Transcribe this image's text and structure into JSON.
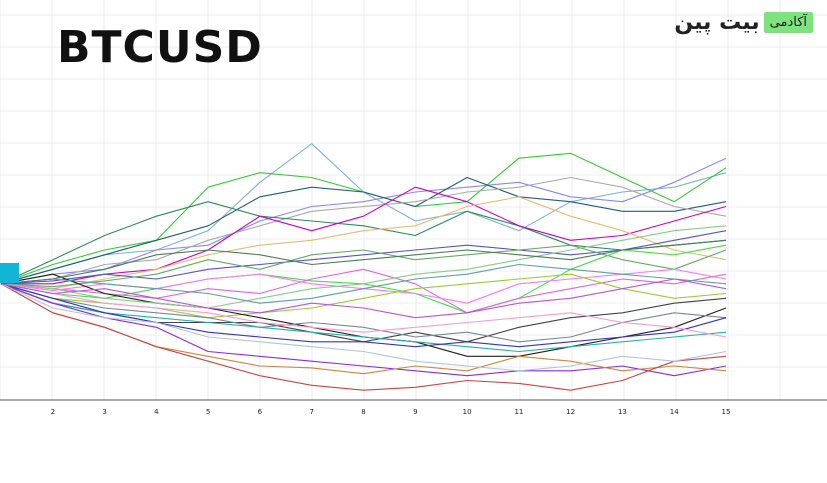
{
  "title": "BTCUSD",
  "brand": {
    "name": "بیت پین",
    "badge": "آکادمی"
  },
  "colors": {
    "background": "#ffffff",
    "grid": "#ececec",
    "axis": "#555555",
    "start_marker": "#13b5d6"
  },
  "chart_data": {
    "type": "line",
    "title": "BTCUSD",
    "xlabel": "",
    "ylabel": "",
    "grid": true,
    "x": [
      1,
      2,
      3,
      4,
      5,
      6,
      7,
      8,
      9,
      10,
      11,
      12,
      13,
      14,
      15
    ],
    "x_tick_labels": [
      "2",
      "3",
      "4",
      "5",
      "6",
      "7",
      "8",
      "9",
      "10",
      "11",
      "12",
      "13",
      "14",
      "15"
    ],
    "ylim": [
      0,
      300
    ],
    "series": [
      {
        "color": "#7fb3d5",
        "values": [
          115,
          130,
          145,
          150,
          170,
          220,
          260,
          210,
          180,
          190,
          170,
          200,
          210,
          215,
          230
        ]
      },
      {
        "color": "#33cc33",
        "values": [
          115,
          135,
          150,
          160,
          215,
          230,
          225,
          210,
          195,
          200,
          245,
          250,
          225,
          200,
          235
        ]
      },
      {
        "color": "#8888ff",
        "values": [
          115,
          125,
          130,
          150,
          155,
          180,
          195,
          200,
          210,
          215,
          220,
          205,
          200,
          220,
          245
        ]
      },
      {
        "color": "#1f5f7a",
        "values": [
          115,
          130,
          145,
          160,
          175,
          205,
          215,
          210,
          195,
          225,
          205,
          200,
          190,
          190,
          200
        ]
      },
      {
        "color": "#aaaaaa",
        "values": [
          115,
          120,
          135,
          140,
          160,
          175,
          190,
          195,
          200,
          210,
          215,
          225,
          215,
          195,
          185
        ]
      },
      {
        "color": "#2e8b57",
        "values": [
          115,
          140,
          165,
          185,
          200,
          185,
          180,
          175,
          165,
          190,
          175,
          155,
          150,
          155,
          160
        ]
      },
      {
        "color": "#cc00cc",
        "values": [
          115,
          115,
          125,
          130,
          150,
          185,
          170,
          185,
          215,
          200,
          175,
          160,
          165,
          180,
          195
        ]
      },
      {
        "color": "#e0c070",
        "values": [
          115,
          110,
          120,
          130,
          145,
          155,
          160,
          170,
          175,
          195,
          205,
          185,
          170,
          150,
          140
        ]
      },
      {
        "color": "#5555cc",
        "values": [
          115,
          118,
          125,
          120,
          130,
          135,
          140,
          145,
          150,
          155,
          150,
          145,
          150,
          160,
          170
        ]
      },
      {
        "color": "#66aa66",
        "values": [
          115,
          112,
          118,
          125,
          140,
          130,
          145,
          150,
          140,
          145,
          150,
          155,
          140,
          130,
          150
        ]
      },
      {
        "color": "#44dd44",
        "values": [
          115,
          105,
          100,
          110,
          120,
          125,
          118,
          115,
          105,
          85,
          100,
          130,
          150,
          145,
          155
        ]
      },
      {
        "color": "#dd66dd",
        "values": [
          115,
          110,
          105,
          100,
          110,
          105,
          120,
          130,
          115,
          85,
          100,
          110,
          120,
          115,
          125
        ]
      },
      {
        "color": "#ff77ff",
        "values": [
          115,
          108,
          115,
          110,
          120,
          125,
          115,
          110,
          105,
          95,
          115,
          120,
          125,
          130,
          120
        ]
      },
      {
        "color": "#99cc33",
        "values": [
          115,
          100,
          95,
          90,
          80,
          85,
          90,
          100,
          110,
          115,
          120,
          125,
          110,
          100,
          105
        ]
      },
      {
        "color": "#222222",
        "values": [
          115,
          125,
          105,
          95,
          90,
          80,
          70,
          60,
          55,
          40,
          40,
          50,
          60,
          70,
          90
        ]
      },
      {
        "color": "#444444",
        "values": [
          115,
          95,
          85,
          75,
          75,
          75,
          65,
          55,
          65,
          55,
          70,
          80,
          85,
          95,
          100
        ]
      },
      {
        "color": "#778899",
        "values": [
          115,
          100,
          90,
          85,
          80,
          70,
          75,
          70,
          60,
          65,
          55,
          60,
          75,
          85,
          80
        ]
      },
      {
        "color": "#20b2aa",
        "values": [
          115,
          95,
          85,
          80,
          75,
          70,
          65,
          60,
          55,
          50,
          45,
          50,
          55,
          60,
          65
        ]
      },
      {
        "color": "#3333cc",
        "values": [
          115,
          100,
          85,
          75,
          65,
          60,
          55,
          55,
          50,
          55,
          50,
          55,
          60,
          65,
          80
        ]
      },
      {
        "color": "#8a2be2",
        "values": [
          115,
          95,
          80,
          70,
          45,
          40,
          35,
          30,
          25,
          20,
          25,
          25,
          30,
          20,
          30
        ]
      },
      {
        "color": "#cd853f",
        "values": [
          115,
          85,
          70,
          50,
          40,
          30,
          28,
          22,
          30,
          25,
          40,
          35,
          25,
          30,
          25
        ]
      },
      {
        "color": "#cc4444",
        "values": [
          115,
          85,
          70,
          50,
          35,
          20,
          10,
          5,
          8,
          15,
          12,
          5,
          15,
          35,
          40
        ]
      },
      {
        "color": "#b0c4de",
        "values": [
          115,
          90,
          80,
          75,
          60,
          55,
          50,
          45,
          35,
          30,
          25,
          30,
          40,
          35,
          45
        ]
      },
      {
        "color": "#ff99cc",
        "values": [
          115,
          105,
          95,
          90,
          85,
          75,
          70,
          65,
          70,
          75,
          80,
          85,
          75,
          70,
          60
        ]
      },
      {
        "color": "#88cc88",
        "values": [
          115,
          110,
          100,
          95,
          90,
          100,
          110,
          115,
          125,
          130,
          140,
          150,
          160,
          170,
          175
        ]
      },
      {
        "color": "#5f9ea0",
        "values": [
          115,
          120,
          115,
          110,
          105,
          95,
          100,
          110,
          120,
          125,
          135,
          130,
          125,
          120,
          115
        ]
      },
      {
        "color": "#ba55d3",
        "values": [
          115,
          105,
          110,
          100,
          90,
          85,
          95,
          90,
          80,
          85,
          95,
          100,
          110,
          120,
          110
        ]
      },
      {
        "color": "#4a7c59",
        "values": [
          115,
          120,
          130,
          145,
          150,
          145,
          135,
          140,
          145,
          150,
          145,
          140,
          150,
          155,
          160
        ]
      }
    ]
  }
}
